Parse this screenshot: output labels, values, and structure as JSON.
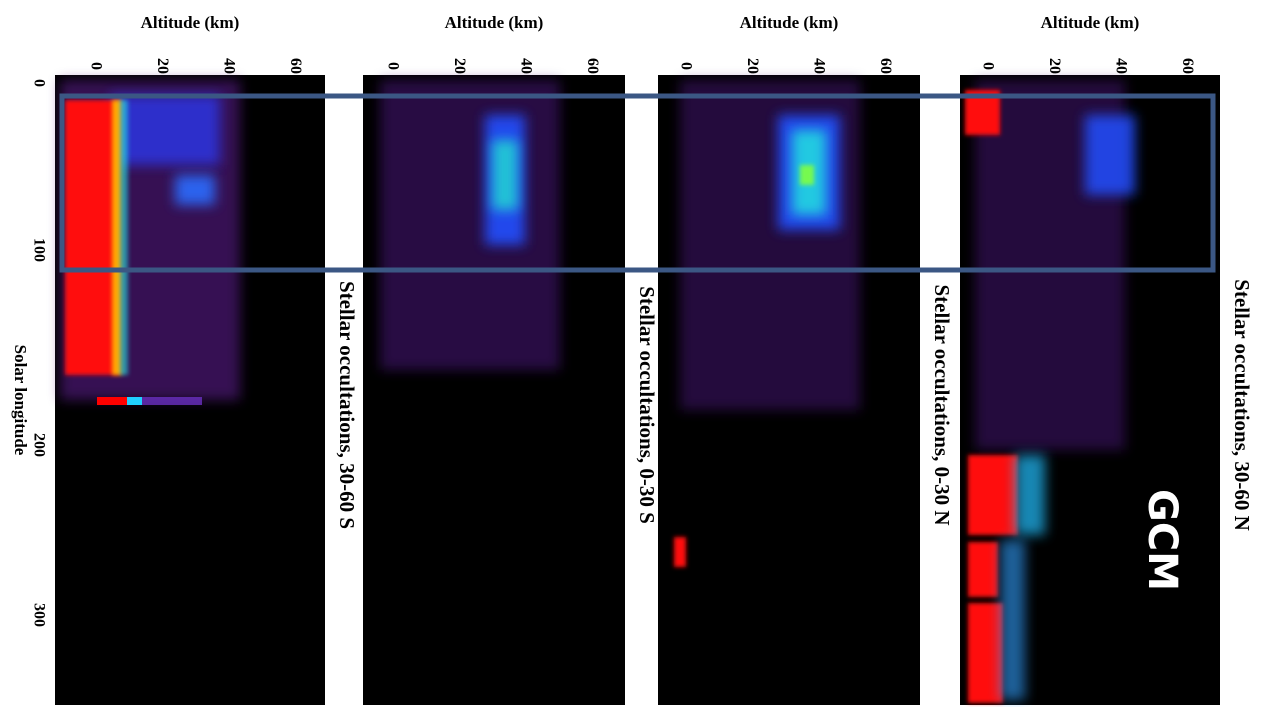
{
  "panels": [
    {
      "axis_label": "Altitude (km)",
      "ticks": [
        "0",
        "20",
        "40",
        "60"
      ],
      "title": "Stellar occultations, 30-60 S"
    },
    {
      "axis_label": "Altitude (km)",
      "ticks": [
        "0",
        "20",
        "40",
        "60"
      ],
      "title": "Stellar occultations, 0-30 S"
    },
    {
      "axis_label": "Altitude (km)",
      "ticks": [
        "0",
        "20",
        "40",
        "60"
      ],
      "title": "Stellar occultations, 0-30 N"
    },
    {
      "axis_label": "Altitude (km)",
      "ticks": [
        "0",
        "20",
        "40",
        "60"
      ],
      "title": "Stellar occultations, 30-60 N"
    }
  ],
  "x_axis": {
    "label": "Solar longitude",
    "ticks": [
      "0",
      "100",
      "200",
      "300"
    ]
  },
  "annotation": "GCM"
}
